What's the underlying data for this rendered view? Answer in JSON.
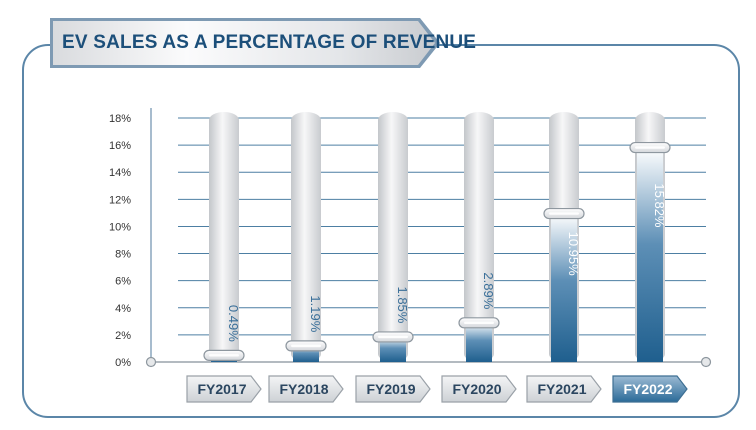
{
  "chart_data": {
    "type": "bar",
    "title": "EV SALES AS A PERCENTAGE OF REVENUE",
    "xlabel": "",
    "ylabel": "",
    "categories": [
      "FY2017",
      "FY2018",
      "FY2019",
      "FY2020",
      "FY2021",
      "FY2022"
    ],
    "values": [
      0.49,
      1.19,
      1.85,
      2.89,
      10.95,
      15.82
    ],
    "value_labels": [
      "0.49%",
      "1.19%",
      "1.85%",
      "2.89%",
      "10.95%",
      "15.82%"
    ],
    "y_ticks": [
      "0%",
      "2%",
      "4%",
      "6%",
      "8%",
      "10%",
      "12%",
      "14%",
      "16%",
      "18%"
    ],
    "ylim": [
      0,
      18
    ],
    "grid": true,
    "highlight_category": "FY2022",
    "colors": {
      "frame": "#5b86a8",
      "title_text": "#1c4f7a",
      "bar_fill": "#1f5f8e",
      "bar_track": "#dfe1e4",
      "grid": "#4d7fa3",
      "label_text": "#3a6f99",
      "category_text": "#2b4660",
      "category_highlight_text": "#ffffff"
    }
  }
}
